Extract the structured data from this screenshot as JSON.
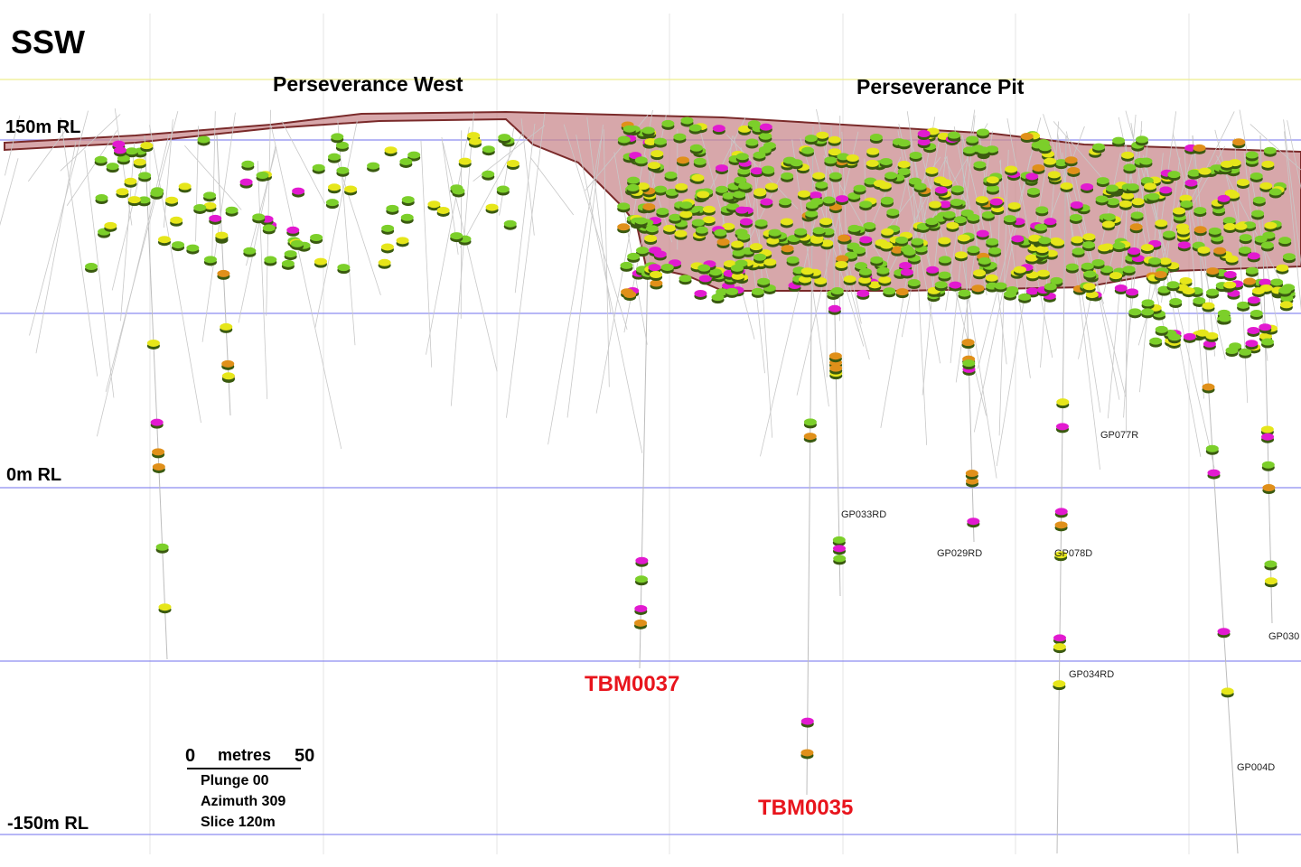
{
  "view_direction": "SSW",
  "areas": {
    "west": "Perseverance West",
    "pit": "Perseverance Pit"
  },
  "rl_labels": [
    "150m RL",
    "0m RL",
    "-150m RL"
  ],
  "highlighted_holes": [
    "TBM0037",
    "TBM0035"
  ],
  "hole_labels": [
    "GP077R",
    "GP033RD",
    "GP029RD",
    "GP078D",
    "GP030",
    "GP034RD",
    "GP004D"
  ],
  "scale_bar": {
    "start": "0",
    "unit": "metres",
    "end": "50"
  },
  "view_params": {
    "plunge": "Plunge 00",
    "azimuth": "Azimuth 309",
    "slice": "Slice 120m"
  },
  "colors": {
    "grid_blue": "#8c8cf0",
    "grid_yellow": "#f0f0a0",
    "pit_fill": "#c98a8e",
    "pit_edge": "#7a2a2a",
    "highlight": "#e8141c",
    "intercept_green": "#7ccf2a",
    "intercept_yellow": "#e6e61a",
    "intercept_magenta": "#e21ad0",
    "intercept_orange": "#e0901a"
  }
}
